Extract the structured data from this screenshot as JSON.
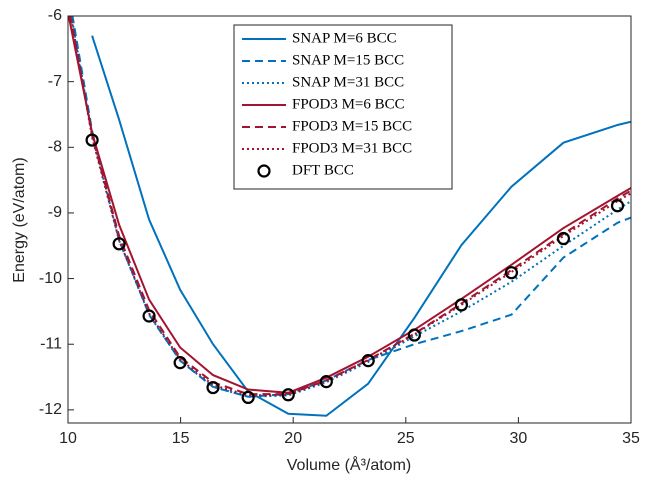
{
  "chart_data": {
    "type": "line",
    "xlabel": "Volume (Å³/atom)",
    "ylabel": "Energy (eV/atom)",
    "x": [
      10,
      11.07,
      12.27,
      13.6,
      14.98,
      16.44,
      18.0,
      19.78,
      21.47,
      23.33,
      25.38,
      27.47,
      29.69,
      32.0,
      34.4,
      35
    ],
    "xlim": [
      10,
      35
    ],
    "xticks": [
      10,
      15,
      20,
      25,
      30,
      35
    ],
    "ylim": [
      -12.2,
      -6
    ],
    "yticks": [
      -12,
      -11,
      -10,
      -9,
      -8,
      -7,
      -6
    ],
    "legend": "upper center",
    "series": [
      {
        "name": "SNAP M=6 BCC",
        "color": "#0072bd",
        "style": "solid",
        "values": [
          null,
          -6.3,
          -7.58,
          -9.1,
          -10.17,
          -11.0,
          -11.72,
          -12.06,
          -12.09,
          -11.6,
          -10.6,
          -9.49,
          -8.6,
          -7.93,
          -7.66,
          -7.61
        ]
      },
      {
        "name": "SNAP M=15 BCC",
        "color": "#0072bd",
        "style": "dashed",
        "values": [
          -5.6,
          -7.75,
          -9.4,
          -10.55,
          -11.25,
          -11.65,
          -11.8,
          -11.76,
          -11.55,
          -11.24,
          -11.0,
          -10.8,
          -10.55,
          -9.68,
          -9.15,
          -9.07
        ]
      },
      {
        "name": "SNAP M=31 BCC",
        "color": "#0072bd",
        "style": "dotted",
        "values": [
          -5.7,
          -7.8,
          -9.42,
          -10.55,
          -11.25,
          -11.65,
          -11.8,
          -11.78,
          -11.58,
          -11.27,
          -10.88,
          -10.5,
          -10.05,
          -9.5,
          -8.95,
          -8.82
        ]
      },
      {
        "name": "FPOD3 M=6 BCC",
        "color": "#a2142f",
        "style": "solid",
        "values": [
          -5.95,
          -7.78,
          -9.18,
          -10.32,
          -11.05,
          -11.47,
          -11.69,
          -11.74,
          -11.51,
          -11.19,
          -10.78,
          -10.31,
          -9.79,
          -9.23,
          -8.74,
          -8.62
        ]
      },
      {
        "name": "FPOD3 M=15 BCC",
        "color": "#a2142f",
        "style": "dashed",
        "values": [
          -5.8,
          -7.82,
          -9.35,
          -10.48,
          -11.2,
          -11.58,
          -11.76,
          -11.76,
          -11.55,
          -11.24,
          -10.84,
          -10.38,
          -9.87,
          -9.32,
          -8.78,
          -8.66
        ]
      },
      {
        "name": "FPOD3 M=31 BCC",
        "color": "#a2142f",
        "style": "dotted",
        "values": [
          -5.75,
          -7.85,
          -9.42,
          -10.53,
          -11.23,
          -11.62,
          -11.78,
          -11.77,
          -11.56,
          -11.25,
          -10.85,
          -10.4,
          -9.9,
          -9.35,
          -8.82,
          -8.7
        ]
      },
      {
        "name": "DFT BCC",
        "color": "#000000",
        "style": "marker",
        "values": [
          null,
          -7.89,
          -9.47,
          -10.57,
          -11.28,
          -11.66,
          -11.81,
          -11.77,
          -11.57,
          -11.25,
          -10.86,
          -10.4,
          -9.91,
          -9.39,
          -8.89,
          null
        ]
      }
    ]
  }
}
